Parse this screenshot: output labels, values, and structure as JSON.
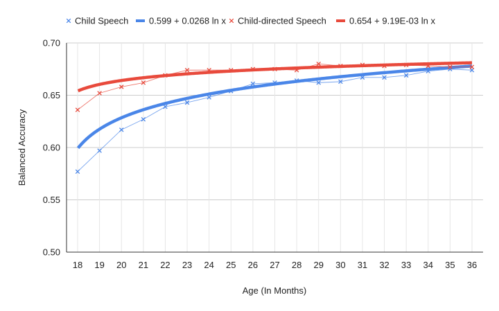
{
  "chart_data": {
    "type": "line",
    "title": "",
    "xlabel": "Age (In Months)",
    "ylabel": "Balanced Accuracy",
    "xlim": [
      18,
      36
    ],
    "ylim": [
      0.5,
      0.7
    ],
    "x_ticks": [
      "18",
      "19",
      "20",
      "21",
      "22",
      "23",
      "24",
      "25",
      "26",
      "27",
      "28",
      "29",
      "30",
      "31",
      "32",
      "33",
      "34",
      "35",
      "36"
    ],
    "y_ticks": [
      "0.50",
      "0.55",
      "0.60",
      "0.65",
      "0.70"
    ],
    "grid": true,
    "legend_position": "top",
    "x": [
      18,
      19,
      20,
      21,
      22,
      23,
      24,
      25,
      26,
      27,
      28,
      29,
      30,
      31,
      32,
      33,
      34,
      35,
      36
    ],
    "series": [
      {
        "name": "Child Speech",
        "kind": "scatter-line",
        "color": "#4a86e8",
        "values": [
          0.577,
          0.597,
          0.617,
          0.627,
          0.639,
          0.643,
          0.648,
          0.654,
          0.661,
          0.662,
          0.664,
          0.662,
          0.663,
          0.667,
          0.667,
          0.669,
          0.673,
          0.675,
          0.674
        ]
      },
      {
        "name": "0.599 + 0.0268 ln x",
        "kind": "trendline",
        "color": "#4a86e8",
        "intercept": 0.599,
        "slope": 0.0268
      },
      {
        "name": "Child-directed Speech",
        "kind": "scatter-line",
        "color": "#e84a3c",
        "values": [
          0.636,
          0.652,
          0.658,
          0.662,
          0.669,
          0.674,
          0.674,
          0.674,
          0.675,
          0.675,
          0.674,
          0.68,
          0.678,
          0.679,
          0.678,
          0.679,
          0.678,
          0.677,
          0.677
        ]
      },
      {
        "name": "0.654 + 9.19E-03 ln x",
        "kind": "trendline",
        "color": "#e84a3c",
        "intercept": 0.654,
        "slope": 0.00919
      }
    ]
  }
}
